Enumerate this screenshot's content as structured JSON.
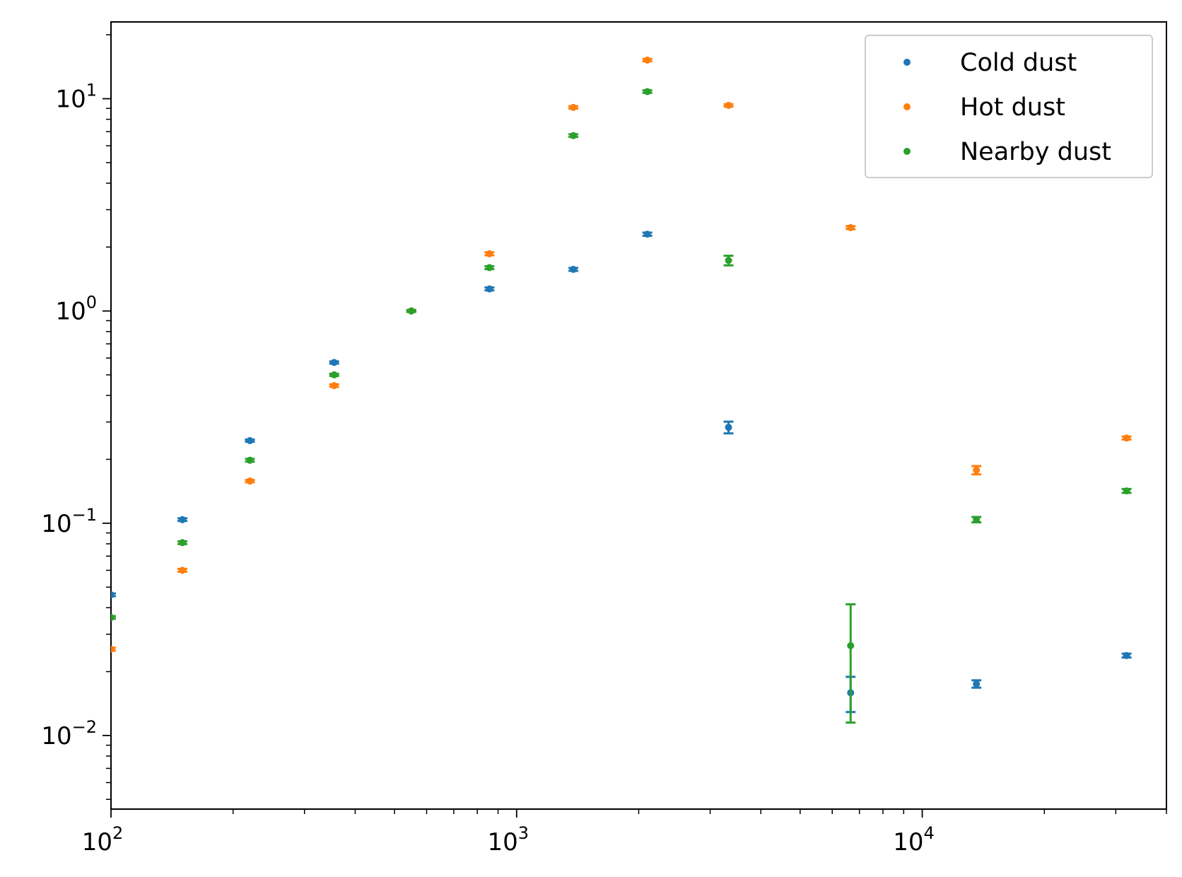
{
  "chart_data": {
    "type": "scatter",
    "title": "",
    "xlabel": "",
    "ylabel": "",
    "xscale": "log",
    "yscale": "log",
    "xlim": [
      100,
      40000
    ],
    "ylim": [
      0.0045,
      23
    ],
    "x_ticks": [
      {
        "base": "10",
        "exp": "2",
        "value": 100
      },
      {
        "base": "10",
        "exp": "3",
        "value": 1000
      },
      {
        "base": "10",
        "exp": "4",
        "value": 10000
      }
    ],
    "y_ticks": [
      {
        "base": "10",
        "exp": "−2",
        "value": 0.01
      },
      {
        "base": "10",
        "exp": "−1",
        "value": 0.1
      },
      {
        "base": "10",
        "exp": "0",
        "value": 1
      },
      {
        "base": "10",
        "exp": "1",
        "value": 10
      }
    ],
    "grid": false,
    "legend": {
      "position": "top-right"
    },
    "series": [
      {
        "name": "Cold dust",
        "color": "#1f77b4",
        "points": [
          {
            "x": 100,
            "y": 0.046,
            "err": 0.0007
          },
          {
            "x": 150,
            "y": 0.104,
            "err": 0.0015
          },
          {
            "x": 220,
            "y": 0.245,
            "err": 0.003
          },
          {
            "x": 355,
            "y": 0.572,
            "err": 0.007
          },
          {
            "x": 550,
            "y": 1.0,
            "err": 0.01
          },
          {
            "x": 857,
            "y": 1.27,
            "err": 0.02
          },
          {
            "x": 1380,
            "y": 1.57,
            "err": 0.025
          },
          {
            "x": 2100,
            "y": 2.3,
            "err": 0.04
          },
          {
            "x": 3330,
            "y": 0.283,
            "err": 0.018
          },
          {
            "x": 6660,
            "y": 0.0159,
            "err": 0.003
          },
          {
            "x": 13600,
            "y": 0.0175,
            "err": 0.0007
          },
          {
            "x": 31900,
            "y": 0.0238,
            "err": 0.0005
          }
        ]
      },
      {
        "name": "Hot dust",
        "color": "#ff7f0e",
        "points": [
          {
            "x": 100,
            "y": 0.0255,
            "err": 0.0004
          },
          {
            "x": 150,
            "y": 0.06,
            "err": 0.0009
          },
          {
            "x": 220,
            "y": 0.158,
            "err": 0.002
          },
          {
            "x": 355,
            "y": 0.445,
            "err": 0.006
          },
          {
            "x": 550,
            "y": 1.0,
            "err": 0.01
          },
          {
            "x": 857,
            "y": 1.86,
            "err": 0.03
          },
          {
            "x": 1380,
            "y": 9.1,
            "err": 0.12
          },
          {
            "x": 2100,
            "y": 15.2,
            "err": 0.2
          },
          {
            "x": 3330,
            "y": 9.3,
            "err": 0.12
          },
          {
            "x": 6660,
            "y": 2.47,
            "err": 0.04
          },
          {
            "x": 13600,
            "y": 0.178,
            "err": 0.008
          },
          {
            "x": 31900,
            "y": 0.252,
            "err": 0.004
          }
        ]
      },
      {
        "name": "Nearby dust",
        "color": "#2ca02c",
        "points": [
          {
            "x": 100,
            "y": 0.036,
            "err": 0.0005
          },
          {
            "x": 150,
            "y": 0.081,
            "err": 0.0012
          },
          {
            "x": 220,
            "y": 0.198,
            "err": 0.003
          },
          {
            "x": 355,
            "y": 0.5,
            "err": 0.006
          },
          {
            "x": 550,
            "y": 1.0,
            "err": 0.01
          },
          {
            "x": 857,
            "y": 1.6,
            "err": 0.025
          },
          {
            "x": 1380,
            "y": 6.7,
            "err": 0.1
          },
          {
            "x": 2100,
            "y": 10.8,
            "err": 0.15
          },
          {
            "x": 3330,
            "y": 1.73,
            "err": 0.09
          },
          {
            "x": 6660,
            "y": 0.0265,
            "err": 0.015
          },
          {
            "x": 13600,
            "y": 0.104,
            "err": 0.003
          },
          {
            "x": 31900,
            "y": 0.142,
            "err": 0.003
          }
        ]
      }
    ]
  }
}
